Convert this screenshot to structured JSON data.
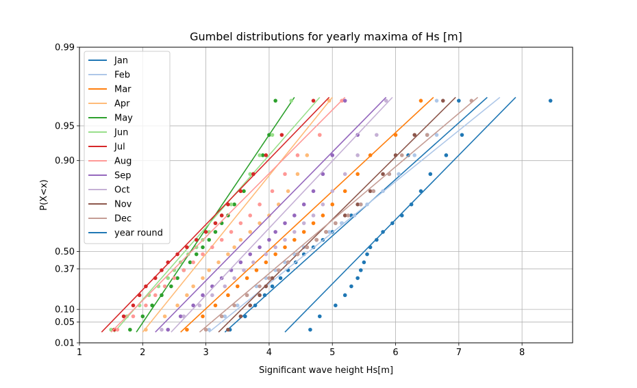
{
  "chart_data": {
    "type": "scatter",
    "title": "Gumbel distributions for yearly maxima of Hs [m]",
    "xlabel": "Significant wave height Hs[m]",
    "ylabel": "P(X<x)",
    "xlim": [
      1,
      8.8
    ],
    "x_ticks": [
      1,
      2,
      3,
      4,
      5,
      6,
      7,
      8
    ],
    "y_scale": "gumbel",
    "y_ticks": [
      0.01,
      0.05,
      0.1,
      0.37,
      0.5,
      0.9,
      0.95,
      0.99
    ],
    "y_tick_labels": [
      "0.01",
      "0.05",
      "0.10",
      "0.37",
      "0.50",
      "0.90",
      "0.95",
      "0.99"
    ],
    "grid": true,
    "legend_position": "top-left",
    "p_range": [
      0.025,
      0.972
    ],
    "series": [
      {
        "name": "Jan",
        "color": "#1f77b4",
        "line": [
          [
            3.3,
            0.025
          ],
          [
            7.45,
            0.972
          ]
        ],
        "points": [
          [
            3.38,
            0.03
          ],
          [
            3.62,
            0.07
          ],
          [
            3.78,
            0.12
          ],
          [
            3.93,
            0.18
          ],
          [
            4.05,
            0.24
          ],
          [
            4.18,
            0.3
          ],
          [
            4.3,
            0.36
          ],
          [
            4.42,
            0.42
          ],
          [
            4.55,
            0.48
          ],
          [
            4.7,
            0.53
          ],
          [
            4.85,
            0.58
          ],
          [
            5.0,
            0.63
          ],
          [
            5.15,
            0.68
          ],
          [
            5.3,
            0.72
          ],
          [
            5.45,
            0.77
          ],
          [
            5.65,
            0.82
          ],
          [
            5.9,
            0.87
          ],
          [
            6.2,
            0.91
          ],
          [
            6.5,
            0.94
          ],
          [
            7.0,
            0.97
          ]
        ]
      },
      {
        "name": "Feb",
        "color": "#aec7e8",
        "line": [
          [
            3.05,
            0.025
          ],
          [
            7.65,
            0.972
          ]
        ],
        "points": [
          [
            3.05,
            0.03
          ],
          [
            3.3,
            0.07
          ],
          [
            3.5,
            0.12
          ],
          [
            3.65,
            0.18
          ],
          [
            3.8,
            0.24
          ],
          [
            3.95,
            0.3
          ],
          [
            4.1,
            0.36
          ],
          [
            4.25,
            0.42
          ],
          [
            4.4,
            0.48
          ],
          [
            4.55,
            0.53
          ],
          [
            4.75,
            0.58
          ],
          [
            4.95,
            0.63
          ],
          [
            5.15,
            0.68
          ],
          [
            5.35,
            0.72
          ],
          [
            5.55,
            0.77
          ],
          [
            5.8,
            0.82
          ],
          [
            6.05,
            0.87
          ],
          [
            6.3,
            0.91
          ],
          [
            6.65,
            0.94
          ],
          [
            6.65,
            0.97
          ]
        ]
      },
      {
        "name": "Mar",
        "color": "#ff7f0e",
        "line": [
          [
            2.6,
            0.025
          ],
          [
            6.6,
            0.972
          ]
        ],
        "points": [
          [
            2.7,
            0.03
          ],
          [
            2.95,
            0.07
          ],
          [
            3.15,
            0.12
          ],
          [
            3.35,
            0.18
          ],
          [
            3.5,
            0.24
          ],
          [
            3.65,
            0.3
          ],
          [
            3.8,
            0.36
          ],
          [
            3.95,
            0.42
          ],
          [
            4.1,
            0.48
          ],
          [
            4.25,
            0.53
          ],
          [
            4.4,
            0.58
          ],
          [
            4.55,
            0.63
          ],
          [
            4.7,
            0.68
          ],
          [
            4.85,
            0.72
          ],
          [
            5.0,
            0.77
          ],
          [
            5.2,
            0.82
          ],
          [
            5.4,
            0.87
          ],
          [
            5.6,
            0.91
          ],
          [
            6.0,
            0.94
          ],
          [
            6.4,
            0.97
          ]
        ]
      },
      {
        "name": "Apr",
        "color": "#ffbb78",
        "line": [
          [
            2.0,
            0.025
          ],
          [
            5.0,
            0.972
          ]
        ],
        "points": [
          [
            2.05,
            0.03
          ],
          [
            2.35,
            0.07
          ],
          [
            2.55,
            0.12
          ],
          [
            2.7,
            0.18
          ],
          [
            2.8,
            0.24
          ],
          [
            2.95,
            0.3
          ],
          [
            3.05,
            0.36
          ],
          [
            3.2,
            0.42
          ],
          [
            3.35,
            0.48
          ],
          [
            3.45,
            0.53
          ],
          [
            3.55,
            0.58
          ],
          [
            3.7,
            0.63
          ],
          [
            3.85,
            0.68
          ],
          [
            4.0,
            0.72
          ],
          [
            4.15,
            0.77
          ],
          [
            4.3,
            0.82
          ],
          [
            4.45,
            0.87
          ],
          [
            4.6,
            0.91
          ],
          [
            4.8,
            0.94
          ],
          [
            4.95,
            0.97
          ]
        ]
      },
      {
        "name": "May",
        "color": "#2ca02c",
        "line": [
          [
            1.9,
            0.025
          ],
          [
            4.4,
            0.972
          ]
        ],
        "points": [
          [
            1.8,
            0.03
          ],
          [
            2.0,
            0.07
          ],
          [
            2.15,
            0.12
          ],
          [
            2.3,
            0.18
          ],
          [
            2.45,
            0.24
          ],
          [
            2.55,
            0.3
          ],
          [
            2.65,
            0.36
          ],
          [
            2.75,
            0.42
          ],
          [
            2.85,
            0.48
          ],
          [
            2.95,
            0.53
          ],
          [
            3.05,
            0.58
          ],
          [
            3.15,
            0.63
          ],
          [
            3.25,
            0.68
          ],
          [
            3.35,
            0.72
          ],
          [
            3.45,
            0.77
          ],
          [
            3.6,
            0.82
          ],
          [
            3.75,
            0.87
          ],
          [
            3.9,
            0.91
          ],
          [
            4.0,
            0.94
          ],
          [
            4.1,
            0.97
          ]
        ]
      },
      {
        "name": "Jun",
        "color": "#98df8a",
        "line": [
          [
            1.55,
            0.025
          ],
          [
            4.8,
            0.972
          ]
        ],
        "points": [
          [
            1.5,
            0.03
          ],
          [
            1.75,
            0.07
          ],
          [
            1.95,
            0.12
          ],
          [
            2.1,
            0.18
          ],
          [
            2.25,
            0.24
          ],
          [
            2.4,
            0.3
          ],
          [
            2.5,
            0.36
          ],
          [
            2.6,
            0.42
          ],
          [
            2.72,
            0.48
          ],
          [
            2.85,
            0.53
          ],
          [
            2.95,
            0.58
          ],
          [
            3.05,
            0.63
          ],
          [
            3.15,
            0.68
          ],
          [
            3.25,
            0.72
          ],
          [
            3.4,
            0.77
          ],
          [
            3.55,
            0.82
          ],
          [
            3.7,
            0.87
          ],
          [
            3.85,
            0.91
          ],
          [
            4.05,
            0.94
          ],
          [
            4.35,
            0.97
          ]
        ]
      },
      {
        "name": "Jul",
        "color": "#d62728",
        "line": [
          [
            1.35,
            0.025
          ],
          [
            4.95,
            0.972
          ]
        ],
        "points": [
          [
            1.55,
            0.03
          ],
          [
            1.7,
            0.07
          ],
          [
            1.85,
            0.12
          ],
          [
            1.95,
            0.18
          ],
          [
            2.05,
            0.24
          ],
          [
            2.2,
            0.3
          ],
          [
            2.3,
            0.36
          ],
          [
            2.4,
            0.42
          ],
          [
            2.55,
            0.48
          ],
          [
            2.7,
            0.53
          ],
          [
            2.85,
            0.58
          ],
          [
            3.0,
            0.63
          ],
          [
            3.15,
            0.68
          ],
          [
            3.25,
            0.72
          ],
          [
            3.35,
            0.77
          ],
          [
            3.55,
            0.82
          ],
          [
            3.75,
            0.87
          ],
          [
            3.95,
            0.91
          ],
          [
            4.2,
            0.94
          ],
          [
            4.7,
            0.97
          ]
        ]
      },
      {
        "name": "Aug",
        "color": "#ff9896",
        "line": [
          [
            1.5,
            0.025
          ],
          [
            5.2,
            0.972
          ]
        ],
        "points": [
          [
            1.6,
            0.03
          ],
          [
            1.85,
            0.07
          ],
          [
            2.05,
            0.12
          ],
          [
            2.2,
            0.18
          ],
          [
            2.35,
            0.24
          ],
          [
            2.5,
            0.3
          ],
          [
            2.65,
            0.36
          ],
          [
            2.8,
            0.42
          ],
          [
            2.95,
            0.48
          ],
          [
            3.1,
            0.53
          ],
          [
            3.25,
            0.58
          ],
          [
            3.4,
            0.63
          ],
          [
            3.55,
            0.68
          ],
          [
            3.7,
            0.72
          ],
          [
            3.85,
            0.77
          ],
          [
            4.05,
            0.82
          ],
          [
            4.25,
            0.87
          ],
          [
            4.45,
            0.91
          ],
          [
            4.8,
            0.94
          ],
          [
            5.15,
            0.97
          ]
        ]
      },
      {
        "name": "Sep",
        "color": "#9467bd",
        "line": [
          [
            2.2,
            0.025
          ],
          [
            5.85,
            0.972
          ]
        ],
        "points": [
          [
            2.4,
            0.03
          ],
          [
            2.6,
            0.07
          ],
          [
            2.8,
            0.12
          ],
          [
            2.95,
            0.18
          ],
          [
            3.1,
            0.24
          ],
          [
            3.25,
            0.3
          ],
          [
            3.4,
            0.36
          ],
          [
            3.55,
            0.42
          ],
          [
            3.7,
            0.48
          ],
          [
            3.85,
            0.53
          ],
          [
            4.0,
            0.58
          ],
          [
            4.1,
            0.63
          ],
          [
            4.25,
            0.68
          ],
          [
            4.4,
            0.72
          ],
          [
            4.55,
            0.77
          ],
          [
            4.7,
            0.82
          ],
          [
            4.85,
            0.87
          ],
          [
            5.0,
            0.91
          ],
          [
            5.4,
            0.94
          ],
          [
            5.2,
            0.97
          ]
        ]
      },
      {
        "name": "Oct",
        "color": "#c5b0d5",
        "line": [
          [
            2.45,
            0.025
          ],
          [
            5.95,
            0.972
          ]
        ],
        "points": [
          [
            2.3,
            0.03
          ],
          [
            2.65,
            0.07
          ],
          [
            2.9,
            0.12
          ],
          [
            3.1,
            0.18
          ],
          [
            3.3,
            0.24
          ],
          [
            3.45,
            0.3
          ],
          [
            3.6,
            0.36
          ],
          [
            3.75,
            0.42
          ],
          [
            3.95,
            0.48
          ],
          [
            4.1,
            0.53
          ],
          [
            4.25,
            0.58
          ],
          [
            4.4,
            0.63
          ],
          [
            4.55,
            0.68
          ],
          [
            4.7,
            0.72
          ],
          [
            4.85,
            0.77
          ],
          [
            5.0,
            0.82
          ],
          [
            5.2,
            0.87
          ],
          [
            5.4,
            0.91
          ],
          [
            5.7,
            0.94
          ],
          [
            5.85,
            0.97
          ]
        ]
      },
      {
        "name": "Nov",
        "color": "#8c564b",
        "line": [
          [
            3.2,
            0.025
          ],
          [
            6.95,
            0.972
          ]
        ],
        "points": [
          [
            3.35,
            0.03
          ],
          [
            3.55,
            0.07
          ],
          [
            3.7,
            0.12
          ],
          [
            3.85,
            0.18
          ],
          [
            3.95,
            0.24
          ],
          [
            4.05,
            0.3
          ],
          [
            4.15,
            0.36
          ],
          [
            4.3,
            0.42
          ],
          [
            4.45,
            0.48
          ],
          [
            4.6,
            0.53
          ],
          [
            4.75,
            0.58
          ],
          [
            4.9,
            0.63
          ],
          [
            5.05,
            0.68
          ],
          [
            5.2,
            0.72
          ],
          [
            5.4,
            0.77
          ],
          [
            5.6,
            0.82
          ],
          [
            5.8,
            0.87
          ],
          [
            6.0,
            0.91
          ],
          [
            6.3,
            0.94
          ],
          [
            6.75,
            0.97
          ]
        ]
      },
      {
        "name": "Dec",
        "color": "#c49c94",
        "line": [
          [
            2.9,
            0.025
          ],
          [
            7.3,
            0.972
          ]
        ],
        "points": [
          [
            3.0,
            0.03
          ],
          [
            3.25,
            0.07
          ],
          [
            3.45,
            0.12
          ],
          [
            3.65,
            0.18
          ],
          [
            3.85,
            0.24
          ],
          [
            4.0,
            0.3
          ],
          [
            4.15,
            0.36
          ],
          [
            4.3,
            0.42
          ],
          [
            4.45,
            0.48
          ],
          [
            4.6,
            0.53
          ],
          [
            4.75,
            0.58
          ],
          [
            4.9,
            0.63
          ],
          [
            5.05,
            0.68
          ],
          [
            5.25,
            0.72
          ],
          [
            5.45,
            0.77
          ],
          [
            5.65,
            0.82
          ],
          [
            5.9,
            0.87
          ],
          [
            6.1,
            0.91
          ],
          [
            6.5,
            0.94
          ],
          [
            7.2,
            0.97
          ]
        ]
      },
      {
        "name": "year round",
        "color": "#1f77b4",
        "line": [
          [
            4.25,
            0.025
          ],
          [
            7.9,
            0.972
          ]
        ],
        "points": [
          [
            4.65,
            0.03
          ],
          [
            4.8,
            0.07
          ],
          [
            5.05,
            0.12
          ],
          [
            5.2,
            0.18
          ],
          [
            5.3,
            0.24
          ],
          [
            5.4,
            0.3
          ],
          [
            5.45,
            0.36
          ],
          [
            5.5,
            0.42
          ],
          [
            5.55,
            0.48
          ],
          [
            5.6,
            0.53
          ],
          [
            5.7,
            0.58
          ],
          [
            5.8,
            0.63
          ],
          [
            5.95,
            0.68
          ],
          [
            6.1,
            0.72
          ],
          [
            6.25,
            0.77
          ],
          [
            6.4,
            0.82
          ],
          [
            6.55,
            0.87
          ],
          [
            6.8,
            0.91
          ],
          [
            7.05,
            0.94
          ],
          [
            8.45,
            0.97
          ]
        ]
      }
    ]
  }
}
